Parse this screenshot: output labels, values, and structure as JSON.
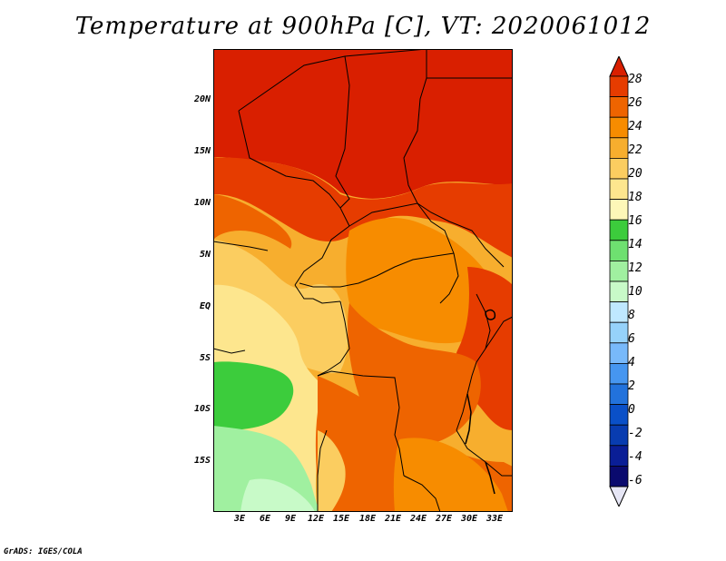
{
  "title": "Temperature at 900hPa [C], VT: 2020061012",
  "credit": "GrADS: IGES/COLA",
  "map": {
    "region": "Central Africa",
    "lat_labels": [
      "20N",
      "15N",
      "10N",
      "5N",
      "EQ",
      "5S",
      "10S",
      "15S"
    ],
    "lon_labels": [
      "3E",
      "6E",
      "9E",
      "12E",
      "15E",
      "18E",
      "21E",
      "24E",
      "27E",
      "30E",
      "33E"
    ]
  },
  "colorbar": {
    "levels": [
      "28",
      "26",
      "24",
      "22",
      "20",
      "18",
      "16",
      "14",
      "12",
      "10",
      "8",
      "6",
      "4",
      "2",
      "0",
      "-2",
      "-4",
      "-6"
    ],
    "colors": [
      "#d91f00",
      "#e63c00",
      "#ee6400",
      "#f78c00",
      "#f7ae2e",
      "#fbcd60",
      "#fde68e",
      "#fdf7b8",
      "#3ccc3c",
      "#6ee070",
      "#a0f0a0",
      "#c8fac8",
      "#bfe8ff",
      "#96d2fa",
      "#78b9fa",
      "#4696f0",
      "#2272dc",
      "#0a50c8",
      "#083cb0",
      "#0a1e96",
      "#0a0a6e",
      "#e6e6f5"
    ]
  }
}
